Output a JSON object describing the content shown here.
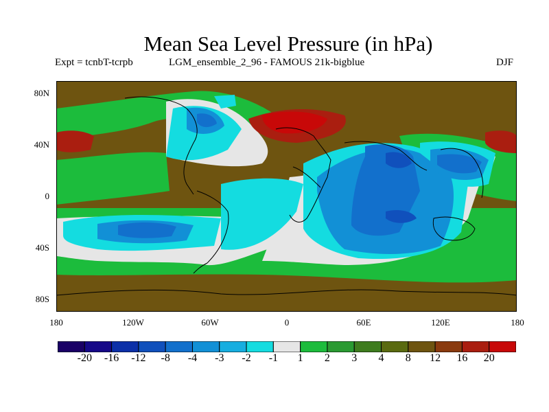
{
  "header": {
    "title": "Mean Sea Level Pressure (in hPa)",
    "expt_label": "Expt = tcnbT-tcrpb",
    "run_label": "LGM_ensemble_2_96 - FAMOUS 21k-bigblue",
    "season": "DJF"
  },
  "axes": {
    "lat_ticks": [
      "80N",
      "40N",
      "0",
      "40S",
      "80S"
    ],
    "lon_ticks": [
      "180",
      "120W",
      "60W",
      "0",
      "60E",
      "120E",
      "180"
    ]
  },
  "legend": {
    "colors": [
      "#1a0066",
      "#160888",
      "#0c30a8",
      "#1050bc",
      "#1270cc",
      "#1290d6",
      "#16aee0",
      "#14dce0",
      "#e6e6e6",
      "#1cbc3c",
      "#2a9a32",
      "#3e7c1e",
      "#5a6a10",
      "#6e5410",
      "#8a3a0e",
      "#aa1e10",
      "#c80808"
    ],
    "labels": [
      "-20",
      "-16",
      "-12",
      "-8",
      "-4",
      "-3",
      "-2",
      "-1",
      "1",
      "2",
      "3",
      "4",
      "8",
      "12",
      "16",
      "20"
    ]
  },
  "palette": {
    "ocean_bg": "#6e5410",
    "green_band": "#1cbc3c",
    "neutral": "#e6e6e6",
    "cyan": "#14dce0",
    "mid_blue": "#1290d6",
    "deep_blue": "#1270cc",
    "darker_blue": "#1050bc",
    "high_red": "#aa1e10",
    "peak_red": "#c80808"
  }
}
